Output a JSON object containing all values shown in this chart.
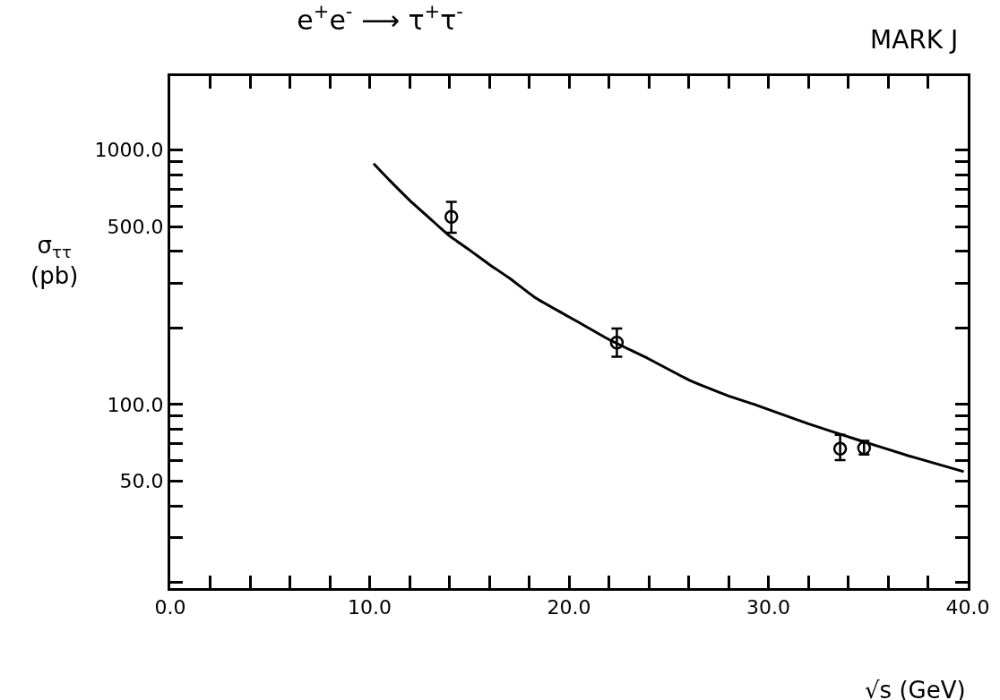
{
  "chart_data": {
    "type": "scatter",
    "title": "e$^{+}$e$^{-}$ ⟶ τ$^{+}$τ$^{-}$",
    "annotations": [
      "MARK J"
    ],
    "xlabel": "√s (GeV)",
    "ylabel": "σ$_{ττ}$\n(pb)",
    "log": "y",
    "xlim": [
      0,
      40
    ],
    "ylim": [
      19,
      1950
    ],
    "xticks": [
      {
        "value": 0,
        "label": "0.0"
      },
      {
        "value": 2,
        "label": null
      },
      {
        "value": 4,
        "label": null
      },
      {
        "value": 6,
        "label": null
      },
      {
        "value": 8,
        "label": null
      },
      {
        "value": 10,
        "label": "10.0"
      },
      {
        "value": 12,
        "label": null
      },
      {
        "value": 14,
        "label": null
      },
      {
        "value": 16,
        "label": null
      },
      {
        "value": 18,
        "label": null
      },
      {
        "value": 20,
        "label": "20.0"
      },
      {
        "value": 22,
        "label": null
      },
      {
        "value": 24,
        "label": null
      },
      {
        "value": 26,
        "label": null
      },
      {
        "value": 28,
        "label": null
      },
      {
        "value": 30,
        "label": "30.0"
      },
      {
        "value": 32,
        "label": null
      },
      {
        "value": 34,
        "label": null
      },
      {
        "value": 36,
        "label": null
      },
      {
        "value": 38,
        "label": null
      },
      {
        "value": 40,
        "label": "40.0"
      }
    ],
    "yticks": [
      {
        "value": 20,
        "label": null
      },
      {
        "value": 30,
        "label": null
      },
      {
        "value": 40,
        "label": null
      },
      {
        "value": 50,
        "label": "50.0"
      },
      {
        "value": 60,
        "label": null
      },
      {
        "value": 70,
        "label": null
      },
      {
        "value": 80,
        "label": null
      },
      {
        "value": 90,
        "label": null
      },
      {
        "value": 100,
        "label": "100.0"
      },
      {
        "value": 200,
        "label": null
      },
      {
        "value": 300,
        "label": null
      },
      {
        "value": 400,
        "label": null
      },
      {
        "value": 500,
        "label": "500.0"
      },
      {
        "value": 600,
        "label": null
      },
      {
        "value": 700,
        "label": null
      },
      {
        "value": 800,
        "label": null
      },
      {
        "value": 900,
        "label": null
      },
      {
        "value": 1000,
        "label": "1000.0"
      }
    ],
    "series": [
      {
        "color": "#000000",
        "marker": "circle",
        "x": [
          14.1,
          22.4,
          33.6,
          34.8
        ],
        "values": [
          546,
          175,
          67,
          67.5
        ],
        "errors": [
          [
            473,
            625
          ],
          [
            154,
            199
          ],
          [
            60.5,
            76
          ],
          [
            63.6,
            72
          ]
        ]
      },
      {
        "type": "line",
        "color": "#000000",
        "marker": "none",
        "line_style": "solid",
        "x": [
          10.2,
          11,
          12,
          13,
          14,
          15,
          16,
          17,
          18.3,
          20,
          22,
          24,
          26,
          28,
          29.4,
          32,
          34.4,
          37,
          39.8
        ],
        "values": [
          884,
          760,
          635,
          540,
          460,
          405,
          355,
          314,
          263,
          221,
          180,
          151,
          125,
          108,
          99.4,
          84,
          73,
          63,
          54.5
        ]
      }
    ]
  }
}
